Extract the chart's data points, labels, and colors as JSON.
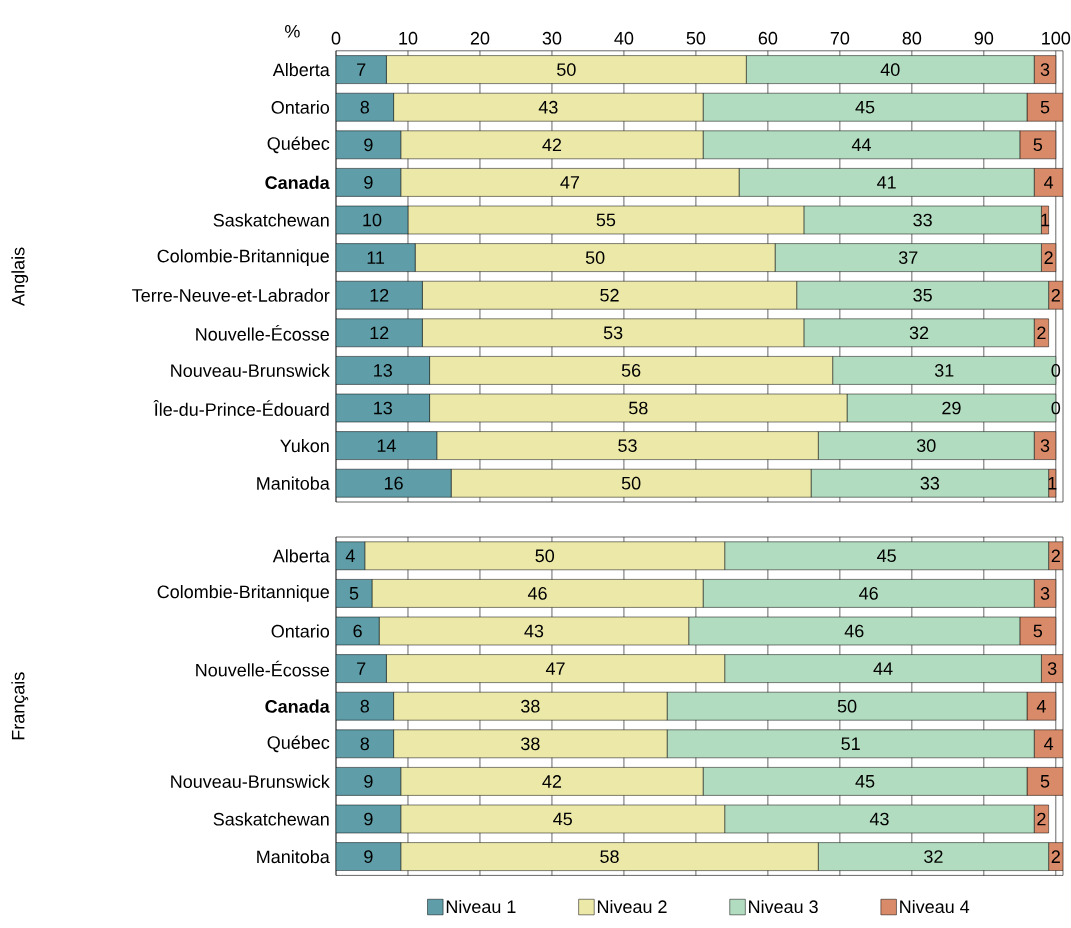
{
  "chart_data": [
    {
      "type": "bar",
      "orientation": "horizontal",
      "stacked": true,
      "data_labels": true,
      "grid": "x",
      "xlabel": "%",
      "ylabel": "Anglais",
      "categories": [
        "Alberta",
        "Ontario",
        "Québec",
        "**Canada**",
        "Saskatchewan",
        "Colombie-Britannique",
        "Terre-Neuve-et-Labrador",
        "Nouvelle-Écosse",
        "Nouveau-Brunswick",
        "Île-du-Prince-Édouard",
        "Yukon",
        "Manitoba"
      ],
      "xlim": [
        0,
        101
      ],
      "xticks": [
        0,
        10,
        20,
        30,
        40,
        50,
        60,
        70,
        80,
        90,
        100
      ],
      "series": [
        {
          "color": "#5f9ea8",
          "values": [
            7,
            8,
            9,
            9,
            10,
            11,
            12,
            12,
            13,
            13,
            14,
            16
          ]
        },
        {
          "color": "#ece9a8",
          "values": [
            50,
            43,
            42,
            47,
            55,
            50,
            52,
            53,
            56,
            58,
            53,
            50
          ]
        },
        {
          "color": "#b2dcbf",
          "values": [
            40,
            45,
            44,
            41,
            33,
            37,
            35,
            32,
            31,
            29,
            30,
            33
          ]
        },
        {
          "color": "#d98a68",
          "values": [
            3,
            5,
            5,
            4,
            1,
            2,
            2,
            2,
            0,
            0,
            3,
            1
          ]
        }
      ]
    },
    {
      "type": "bar",
      "orientation": "horizontal",
      "stacked": true,
      "data_labels": true,
      "grid": "x",
      "ylabel": "Français",
      "tick_labels": "y",
      "legend": "bottom",
      "categories": [
        "Alberta",
        "Colombie-Britannique",
        "Ontario",
        "Nouvelle-Écosse",
        "**Canada**",
        "Québec",
        "Nouveau-Brunswick",
        "Saskatchewan",
        "Manitoba"
      ],
      "xlim": [
        0,
        101
      ],
      "xticks": [
        0,
        10,
        20,
        30,
        40,
        50,
        60,
        70,
        80,
        90,
        100
      ],
      "series": [
        {
          "name": "Niveau 1",
          "color": "#5f9ea8",
          "values": [
            4,
            5,
            6,
            7,
            8,
            8,
            9,
            9,
            9
          ]
        },
        {
          "name": "Niveau 2",
          "color": "#ece9a8",
          "values": [
            50,
            46,
            43,
            47,
            38,
            38,
            42,
            45,
            58
          ]
        },
        {
          "name": "Niveau 3",
          "color": "#b2dcbf",
          "values": [
            45,
            46,
            46,
            44,
            50,
            51,
            45,
            43,
            32
          ]
        },
        {
          "name": "Niveau 4",
          "color": "#d98a68",
          "values": [
            2,
            3,
            5,
            3,
            4,
            4,
            5,
            2,
            2
          ]
        }
      ]
    }
  ]
}
